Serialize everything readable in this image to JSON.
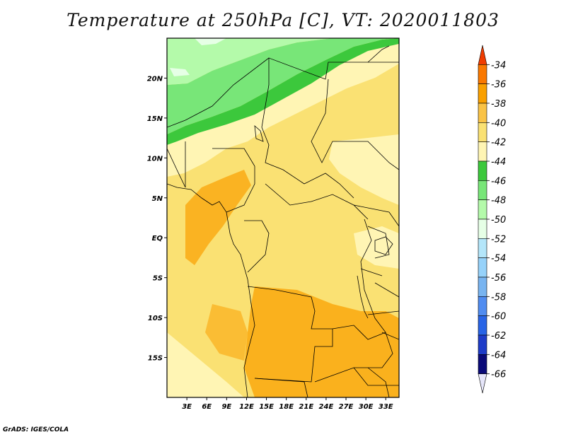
{
  "title": "Temperature at 250hPa [C], VT: 2020011803",
  "credit": "GrADS: IGES/COLA",
  "map": {
    "lat_range": [
      -20,
      25
    ],
    "lon_range": [
      0,
      35
    ],
    "lat_ticks": [
      {
        "value": 20,
        "label": "20N"
      },
      {
        "value": 15,
        "label": "15N"
      },
      {
        "value": 10,
        "label": "10N"
      },
      {
        "value": 5,
        "label": "5N"
      },
      {
        "value": 0,
        "label": "EQ"
      },
      {
        "value": -5,
        "label": "5S"
      },
      {
        "value": -10,
        "label": "10S"
      },
      {
        "value": -15,
        "label": "15S"
      }
    ],
    "lon_ticks": [
      {
        "value": 3,
        "label": "3E"
      },
      {
        "value": 6,
        "label": "6E"
      },
      {
        "value": 9,
        "label": "9E"
      },
      {
        "value": 12,
        "label": "12E"
      },
      {
        "value": 15,
        "label": "15E"
      },
      {
        "value": 18,
        "label": "18E"
      },
      {
        "value": 21,
        "label": "21E"
      },
      {
        "value": 24,
        "label": "24E"
      },
      {
        "value": 27,
        "label": "27E"
      },
      {
        "value": 30,
        "label": "30E"
      },
      {
        "value": 33,
        "label": "33E"
      }
    ]
  },
  "colorbar": {
    "levels": [
      "-34",
      "-36",
      "-38",
      "-40",
      "-42",
      "-44",
      "-46",
      "-48",
      "-50",
      "-52",
      "-54",
      "-56",
      "-58",
      "-60",
      "-62",
      "-64",
      "-66"
    ],
    "colors": [
      "#f03c00",
      "#fa7800",
      "#faa000",
      "#fac346",
      "#fae173",
      "#fff5b4",
      "#3cc83c",
      "#78e678",
      "#b4faaa",
      "#e6ffe6",
      "#b4e6fa",
      "#96d2fa",
      "#78b4f0",
      "#508cf0",
      "#2864e6",
      "#1e3cc8",
      "#0a0a78",
      "#e6e6fa"
    ]
  }
}
